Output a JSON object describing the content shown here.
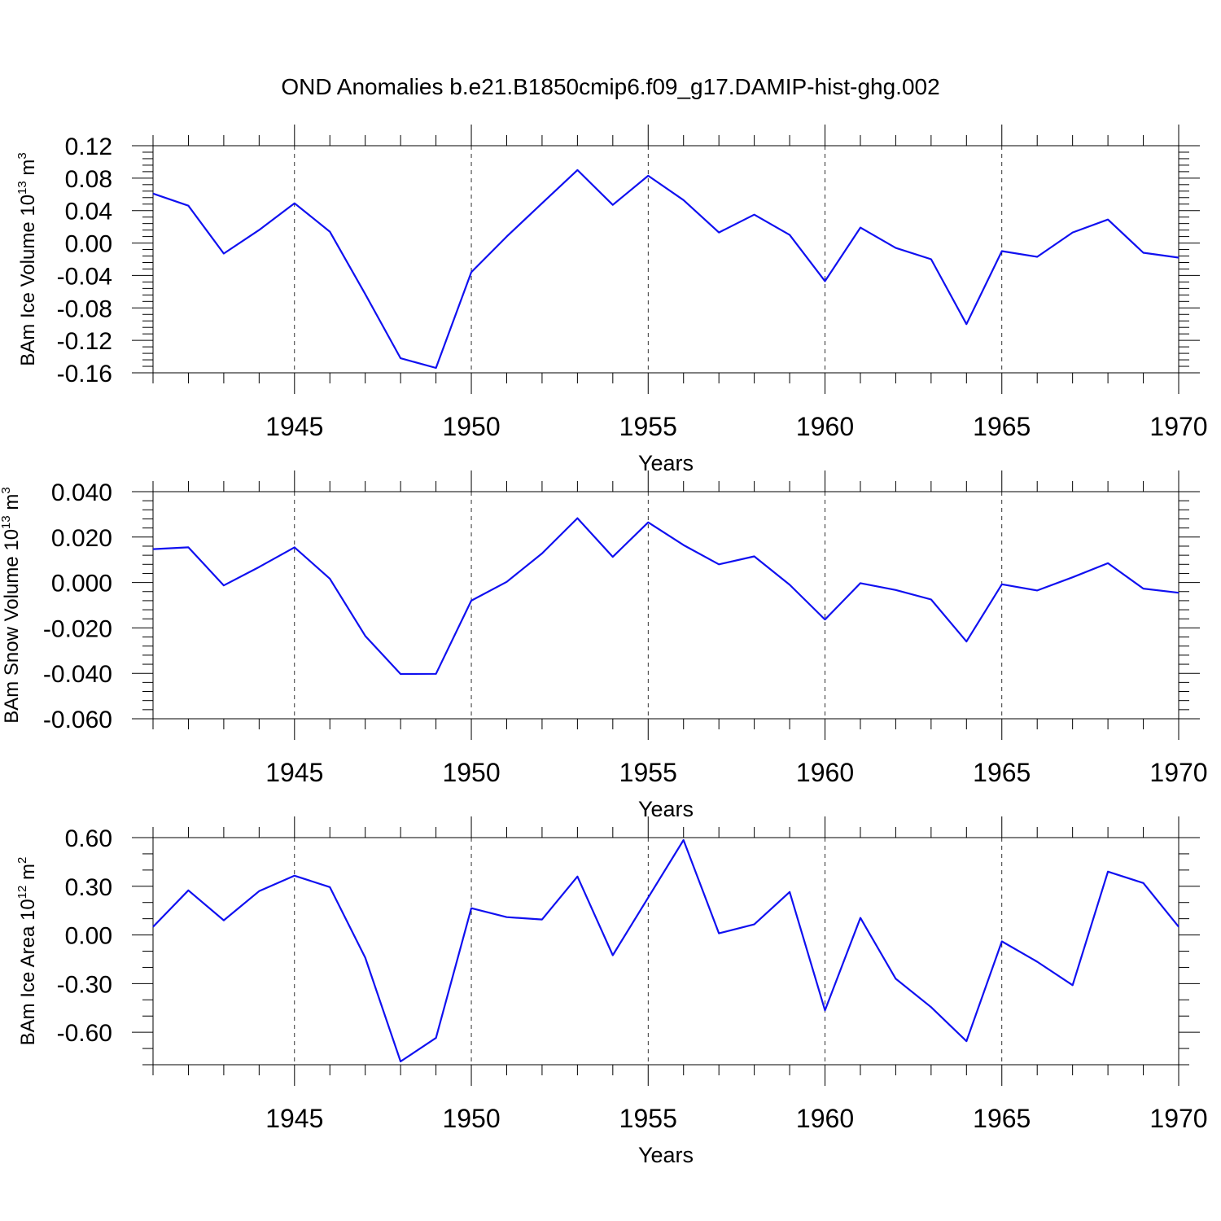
{
  "title": "OND Anomalies b.e21.B1850cmip6.f09_g17.DAMIP-hist-ghg.002",
  "colors": {
    "line": "#1010f0"
  },
  "chart_data": [
    {
      "type": "line",
      "ylabel_main": "BAm Ice Volume 10",
      "ylabel_exp": "13",
      "ylabel_unit": " m",
      "ylabel_unit_exp": "3",
      "xlabel": "Years",
      "xlim": [
        1941,
        1970
      ],
      "ylim": [
        -0.16,
        0.12
      ],
      "yticks": [
        0.12,
        0.08,
        0.04,
        0.0,
        -0.04,
        -0.08,
        -0.12,
        -0.16
      ],
      "ytick_labels": [
        "0.12",
        "0.08",
        "0.04",
        "0.00",
        "-0.04",
        "-0.08",
        "-0.12",
        "-0.16"
      ],
      "yminor": 0.008,
      "xticks": [
        1945,
        1950,
        1955,
        1960,
        1965,
        1970
      ],
      "xtick_labels": [
        "1945",
        "1950",
        "1955",
        "1960",
        "1965",
        "1970"
      ],
      "grid": "dashed vertical",
      "x": [
        1941,
        1942,
        1943,
        1944,
        1945,
        1946,
        1947,
        1948,
        1949,
        1950,
        1951,
        1952,
        1953,
        1954,
        1955,
        1956,
        1957,
        1958,
        1959,
        1960,
        1961,
        1962,
        1963,
        1964,
        1965,
        1966,
        1967,
        1968,
        1969,
        1970
      ],
      "y": [
        0.061,
        0.046,
        -0.013,
        0.016,
        0.049,
        0.014,
        -0.063,
        -0.142,
        -0.154,
        -0.036,
        0.008,
        0.049,
        0.09,
        0.047,
        0.083,
        0.053,
        0.013,
        0.035,
        0.01,
        -0.047,
        0.019,
        -0.006,
        -0.02,
        -0.1,
        -0.01,
        -0.017,
        0.013,
        0.029,
        -0.012,
        -0.018
      ]
    },
    {
      "type": "line",
      "ylabel_main": "BAm Snow Volume 10",
      "ylabel_exp": "13",
      "ylabel_unit": " m",
      "ylabel_unit_exp": "3",
      "xlabel": "Years",
      "xlim": [
        1941,
        1970
      ],
      "ylim": [
        -0.06,
        0.04
      ],
      "yticks": [
        0.04,
        0.02,
        0.0,
        -0.02,
        -0.04,
        -0.06
      ],
      "ytick_labels": [
        "0.040",
        "0.020",
        "0.000",
        "-0.020",
        "-0.040",
        "-0.060"
      ],
      "yminor": 0.004,
      "xticks": [
        1945,
        1950,
        1955,
        1960,
        1965,
        1970
      ],
      "xtick_labels": [
        "1945",
        "1950",
        "1955",
        "1960",
        "1965",
        "1970"
      ],
      "grid": "dashed vertical",
      "x": [
        1941,
        1942,
        1943,
        1944,
        1945,
        1946,
        1947,
        1948,
        1949,
        1950,
        1951,
        1952,
        1953,
        1954,
        1955,
        1956,
        1957,
        1958,
        1959,
        1960,
        1961,
        1962,
        1963,
        1964,
        1965,
        1966,
        1967,
        1968,
        1969,
        1970
      ],
      "y": [
        0.0147,
        0.0155,
        -0.0013,
        0.0068,
        0.0155,
        0.0017,
        -0.0235,
        -0.0403,
        -0.0402,
        -0.008,
        0.0003,
        0.0128,
        0.0283,
        0.0113,
        0.0265,
        0.0165,
        0.008,
        0.0115,
        -0.001,
        -0.0163,
        -0.0003,
        -0.0033,
        -0.0075,
        -0.026,
        -0.0008,
        -0.0035,
        0.0023,
        0.0085,
        -0.0027,
        -0.0045
      ]
    },
    {
      "type": "line",
      "ylabel_main": "BAm Ice Area 10",
      "ylabel_exp": "12",
      "ylabel_unit": " m",
      "ylabel_unit_exp": "2",
      "xlabel": "Years",
      "xlim": [
        1941,
        1970
      ],
      "ylim": [
        -0.8,
        0.6
      ],
      "yticks": [
        0.6,
        0.3,
        0.0,
        -0.3,
        -0.6
      ],
      "ytick_labels": [
        "0.60",
        "0.30",
        "0.00",
        "-0.30",
        "-0.60"
      ],
      "yminor": 0.1,
      "xticks": [
        1945,
        1950,
        1955,
        1960,
        1965,
        1970
      ],
      "xtick_labels": [
        "1945",
        "1950",
        "1955",
        "1960",
        "1965",
        "1970"
      ],
      "grid": "dashed vertical",
      "x": [
        1941,
        1942,
        1943,
        1944,
        1945,
        1946,
        1947,
        1948,
        1949,
        1950,
        1951,
        1952,
        1953,
        1954,
        1955,
        1956,
        1957,
        1958,
        1959,
        1960,
        1961,
        1962,
        1963,
        1964,
        1965,
        1966,
        1967,
        1968,
        1969,
        1970
      ],
      "y": [
        0.05,
        0.275,
        0.09,
        0.27,
        0.365,
        0.295,
        -0.14,
        -0.78,
        -0.635,
        0.165,
        0.11,
        0.095,
        0.36,
        -0.125,
        0.23,
        0.585,
        0.01,
        0.065,
        0.265,
        -0.465,
        0.105,
        -0.27,
        -0.445,
        -0.655,
        -0.04,
        -0.165,
        -0.31,
        0.39,
        0.32,
        0.05
      ]
    }
  ]
}
